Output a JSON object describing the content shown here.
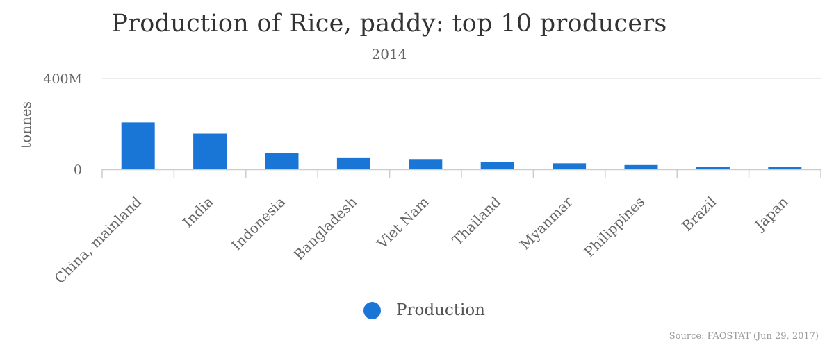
{
  "chart_data": {
    "type": "bar",
    "title": "Production of Rice, paddy: top 10 producers",
    "subtitle": "2014",
    "xlabel": "",
    "ylabel": "tonnes",
    "ylim": [
      0,
      400000000
    ],
    "yticks": [
      {
        "value": 0,
        "label": "0"
      },
      {
        "value": 400000000,
        "label": "400M"
      }
    ],
    "categories": [
      "China, mainland",
      "India",
      "Indonesia",
      "Bangladesh",
      "Viet Nam",
      "Thailand",
      "Myanmar",
      "Philippines",
      "Brazil",
      "Japan"
    ],
    "series": [
      {
        "name": "Production",
        "color": "#1976d6",
        "values": [
          206500000,
          157200000,
          70800000,
          52300000,
          45000000,
          32600000,
          26400000,
          18900000,
          12200000,
          10500000
        ]
      }
    ],
    "grid": true,
    "legend_position": "bottom-center",
    "source": "Source: FAOSTAT (Jun 29, 2017)"
  }
}
